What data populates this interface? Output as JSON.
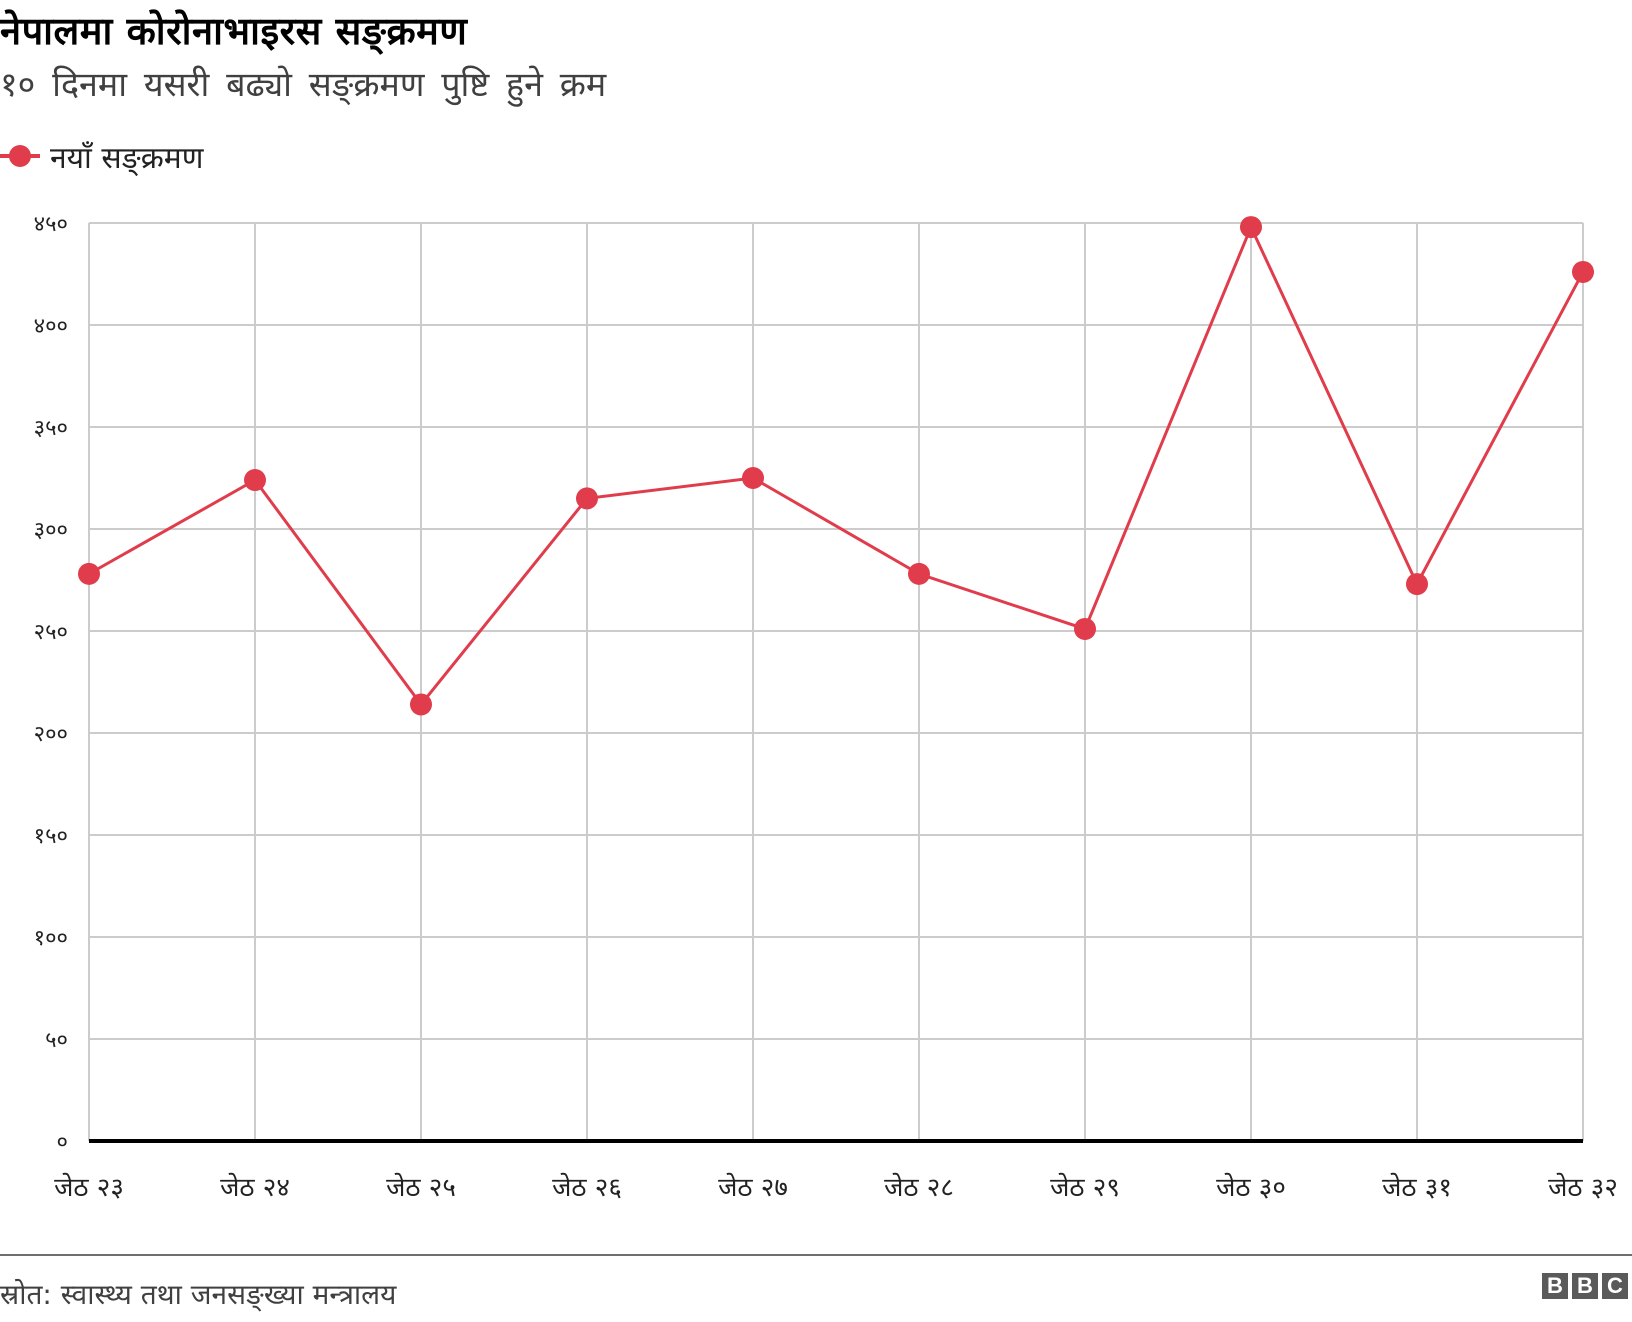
{
  "header": {
    "title": "नेपालमा कोरोनाभाइरस सङ्क्रमण",
    "subtitle": "१० दिनमा यसरी बढ्यो सङ्क्रमण पुष्टि हुने क्रम"
  },
  "legend": {
    "label": "नयाँ सङ्क्रमण",
    "color": "#e03c4b"
  },
  "footer": {
    "source": "स्रोत: स्वास्थ्य तथा जनसङ्ख्या मन्त्रालय",
    "logo": [
      "B",
      "B",
      "C"
    ]
  },
  "colors": {
    "series": "#e03c4b",
    "grid": "#cccccc",
    "axis": "#000000",
    "footer_rule": "#6e6e6e",
    "logo_bg": "#5a5a5a"
  },
  "chart_data": {
    "type": "line",
    "title": "नेपालमा कोरोनाभाइरस सङ्क्रमण",
    "subtitle": "१० दिनमा यसरी बढ्यो सङ्क्रमण पुष्टि हुने क्रम",
    "xlabel": "",
    "ylabel": "",
    "categories": [
      "जेठ २३",
      "जेठ २४",
      "जेठ २५",
      "जेठ २६",
      "जेठ २७",
      "जेठ २८",
      "जेठ २९",
      "जेठ ३०",
      "जेठ ३१",
      "जेठ ३२"
    ],
    "series": [
      {
        "name": "नयाँ सङ्क्रमण",
        "color": "#e03c4b",
        "values": [
          278,
          324,
          214,
          315,
          325,
          278,
          251,
          448,
          273,
          426
        ]
      }
    ],
    "ylim": [
      0,
      450
    ],
    "yticks": [
      0,
      50,
      100,
      150,
      200,
      250,
      300,
      350,
      400,
      450
    ],
    "ytick_labels": [
      "०",
      "५०",
      "१००",
      "१५०",
      "२००",
      "२५०",
      "३००",
      "३५०",
      "४००",
      "४५०"
    ],
    "grid": true,
    "legend_position": "top-left",
    "source": "स्रोत: स्वास्थ्य तथा जनसङ्ख्या मन्त्रालय"
  }
}
